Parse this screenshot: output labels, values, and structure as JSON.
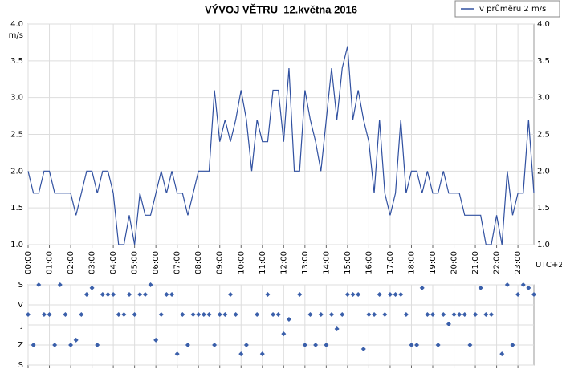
{
  "chart_data": [
    {
      "type": "line",
      "title": "VÝVOJ VĚTRU  12.května 2016",
      "y_unit": "m/s",
      "xlabel": "UTC+2",
      "x": [
        0,
        0.25,
        0.5,
        0.75,
        1,
        1.25,
        1.5,
        1.75,
        2,
        2.25,
        2.5,
        2.75,
        3,
        3.25,
        3.5,
        3.75,
        4,
        4.25,
        4.5,
        4.75,
        5,
        5.25,
        5.5,
        5.75,
        6,
        6.25,
        6.5,
        6.75,
        7,
        7.25,
        7.5,
        7.75,
        8,
        8.25,
        8.5,
        8.75,
        9,
        9.25,
        9.5,
        9.75,
        10,
        10.25,
        10.5,
        10.75,
        11,
        11.25,
        11.5,
        11.75,
        12,
        12.25,
        12.5,
        12.75,
        13,
        13.25,
        13.5,
        13.75,
        14,
        14.25,
        14.5,
        14.75,
        15,
        15.25,
        15.5,
        15.75,
        16,
        16.25,
        16.5,
        16.75,
        17,
        17.25,
        17.5,
        17.75,
        18,
        18.25,
        18.5,
        18.75,
        19,
        19.25,
        19.5,
        19.75,
        20,
        20.25,
        20.5,
        20.75,
        21,
        21.25,
        21.5,
        21.75,
        22,
        22.25,
        22.5,
        22.75,
        23,
        23.25,
        23.5,
        23.75
      ],
      "series": [
        {
          "name": "v průměru 2 m/s",
          "color": "#3050a0",
          "values": [
            2.0,
            1.7,
            1.7,
            2.0,
            2.0,
            1.7,
            1.7,
            1.7,
            1.7,
            1.4,
            1.7,
            2.0,
            2.0,
            1.7,
            2.0,
            2.0,
            1.7,
            1.0,
            1.0,
            1.4,
            1.0,
            1.7,
            1.4,
            1.4,
            1.7,
            2.0,
            1.7,
            2.0,
            1.7,
            1.7,
            1.4,
            1.7,
            2.0,
            2.0,
            2.0,
            3.1,
            2.4,
            2.7,
            2.4,
            2.7,
            3.1,
            2.7,
            2.0,
            2.7,
            2.4,
            2.4,
            3.1,
            3.1,
            2.4,
            3.4,
            2.0,
            2.0,
            3.1,
            2.7,
            2.4,
            2.0,
            2.7,
            3.4,
            2.7,
            3.4,
            3.7,
            2.7,
            3.1,
            2.7,
            2.4,
            1.7,
            2.7,
            1.7,
            1.4,
            1.7,
            2.7,
            1.7,
            2.0,
            2.0,
            1.7,
            2.0,
            1.7,
            1.7,
            2.0,
            1.7,
            1.7,
            1.7,
            1.4,
            1.4,
            1.4,
            1.4,
            1.0,
            1.0,
            1.4,
            1.0,
            2.0,
            1.4,
            1.7,
            1.7,
            2.7,
            1.7
          ]
        }
      ],
      "xlim": [
        0,
        23.75
      ],
      "ylim": [
        1,
        4
      ],
      "yticks": [
        {
          "value": 1,
          "label": "1.0"
        },
        1.5,
        {
          "value": 2,
          "label": "2.0"
        },
        2.5,
        {
          "value": 3,
          "label": "3.0"
        },
        3.5,
        {
          "value": 4,
          "label": "4.0"
        }
      ],
      "xticks": [
        {
          "value": 0,
          "label": "00:00"
        },
        {
          "value": 1,
          "label": "01:00"
        },
        {
          "value": 2,
          "label": "02:00"
        },
        {
          "value": 3,
          "label": "03:00"
        },
        {
          "value": 4,
          "label": "04:00"
        },
        {
          "value": 5,
          "label": "05:00"
        },
        {
          "value": 6,
          "label": "06:00"
        },
        {
          "value": 7,
          "label": "07:00"
        },
        {
          "value": 8,
          "label": "08:00"
        },
        {
          "value": 9,
          "label": "09:00"
        },
        {
          "value": 10,
          "label": "10:00"
        },
        {
          "value": 11,
          "label": "11:00"
        },
        {
          "value": 12,
          "label": "12:00"
        },
        {
          "value": 13,
          "label": "13:00"
        },
        {
          "value": 14,
          "label": "14:00"
        },
        {
          "value": 15,
          "label": "15:00"
        },
        {
          "value": 16,
          "label": "16:00"
        },
        {
          "value": 17,
          "label": "17:00"
        },
        {
          "value": 18,
          "label": "18:00"
        },
        {
          "value": 19,
          "label": "19:00"
        },
        {
          "value": 20,
          "label": "20:00"
        },
        {
          "value": 21,
          "label": "21:00"
        },
        {
          "value": 22,
          "label": "22:00"
        },
        {
          "value": 23,
          "label": "23:00"
        }
      ],
      "grid": true,
      "legend": "top-right"
    },
    {
      "type": "scatter",
      "x": [
        0,
        0.25,
        0.5,
        0.75,
        1,
        1.25,
        1.5,
        1.75,
        2,
        2.25,
        2.5,
        2.75,
        3,
        3.25,
        3.5,
        3.75,
        4,
        4.25,
        4.5,
        4.75,
        5,
        5.25,
        5.5,
        5.75,
        6,
        6.25,
        6.5,
        6.75,
        7,
        7.25,
        7.5,
        7.75,
        8,
        8.25,
        8.5,
        8.75,
        9,
        9.25,
        9.5,
        9.75,
        10,
        10.25,
        10.5,
        10.75,
        11,
        11.25,
        11.5,
        11.75,
        12,
        12.25,
        12.5,
        12.75,
        13,
        13.25,
        13.5,
        13.75,
        14,
        14.25,
        14.5,
        14.75,
        15,
        15.25,
        15.5,
        15.75,
        16,
        16.25,
        16.5,
        16.75,
        17,
        17.25,
        17.5,
        17.75,
        18,
        18.25,
        18.5,
        18.75,
        19,
        19.25,
        19.5,
        19.75,
        20,
        20.25,
        20.5,
        20.75,
        21,
        21.25,
        21.5,
        21.75,
        22,
        22.25,
        22.5,
        22.75,
        23,
        23.25,
        23.5,
        23.75
      ],
      "series": [
        {
          "color": "#3a5faa",
          "values": [
            133,
            270,
            0,
            133,
            133,
            270,
            0,
            133,
            270,
            248,
            133,
            43,
            14,
            270,
            43,
            43,
            43,
            133,
            133,
            43,
            133,
            43,
            43,
            0,
            248,
            133,
            43,
            43,
            310,
            133,
            270,
            133,
            133,
            133,
            133,
            270,
            133,
            133,
            43,
            133,
            310,
            270,
            null,
            133,
            310,
            43,
            133,
            133,
            220,
            155,
            null,
            43,
            270,
            133,
            270,
            133,
            270,
            133,
            198,
            133,
            43,
            43,
            43,
            288,
            133,
            133,
            43,
            133,
            43,
            43,
            43,
            133,
            270,
            270,
            14,
            133,
            133,
            270,
            133,
            176,
            133,
            133,
            133,
            270,
            133,
            14,
            133,
            133,
            null,
            310,
            0,
            270,
            43,
            0,
            14,
            43
          ]
        }
      ],
      "xlim": [
        0,
        23.75
      ],
      "ylim": [
        0,
        360
      ],
      "y_inverted": true,
      "yticks": [
        {
          "value": 0,
          "label": "S"
        },
        {
          "value": 90,
          "label": "V"
        },
        {
          "value": 180,
          "label": "J"
        },
        {
          "value": 270,
          "label": "Z"
        },
        {
          "value": 360,
          "label": "S"
        }
      ],
      "grid": true
    }
  ]
}
